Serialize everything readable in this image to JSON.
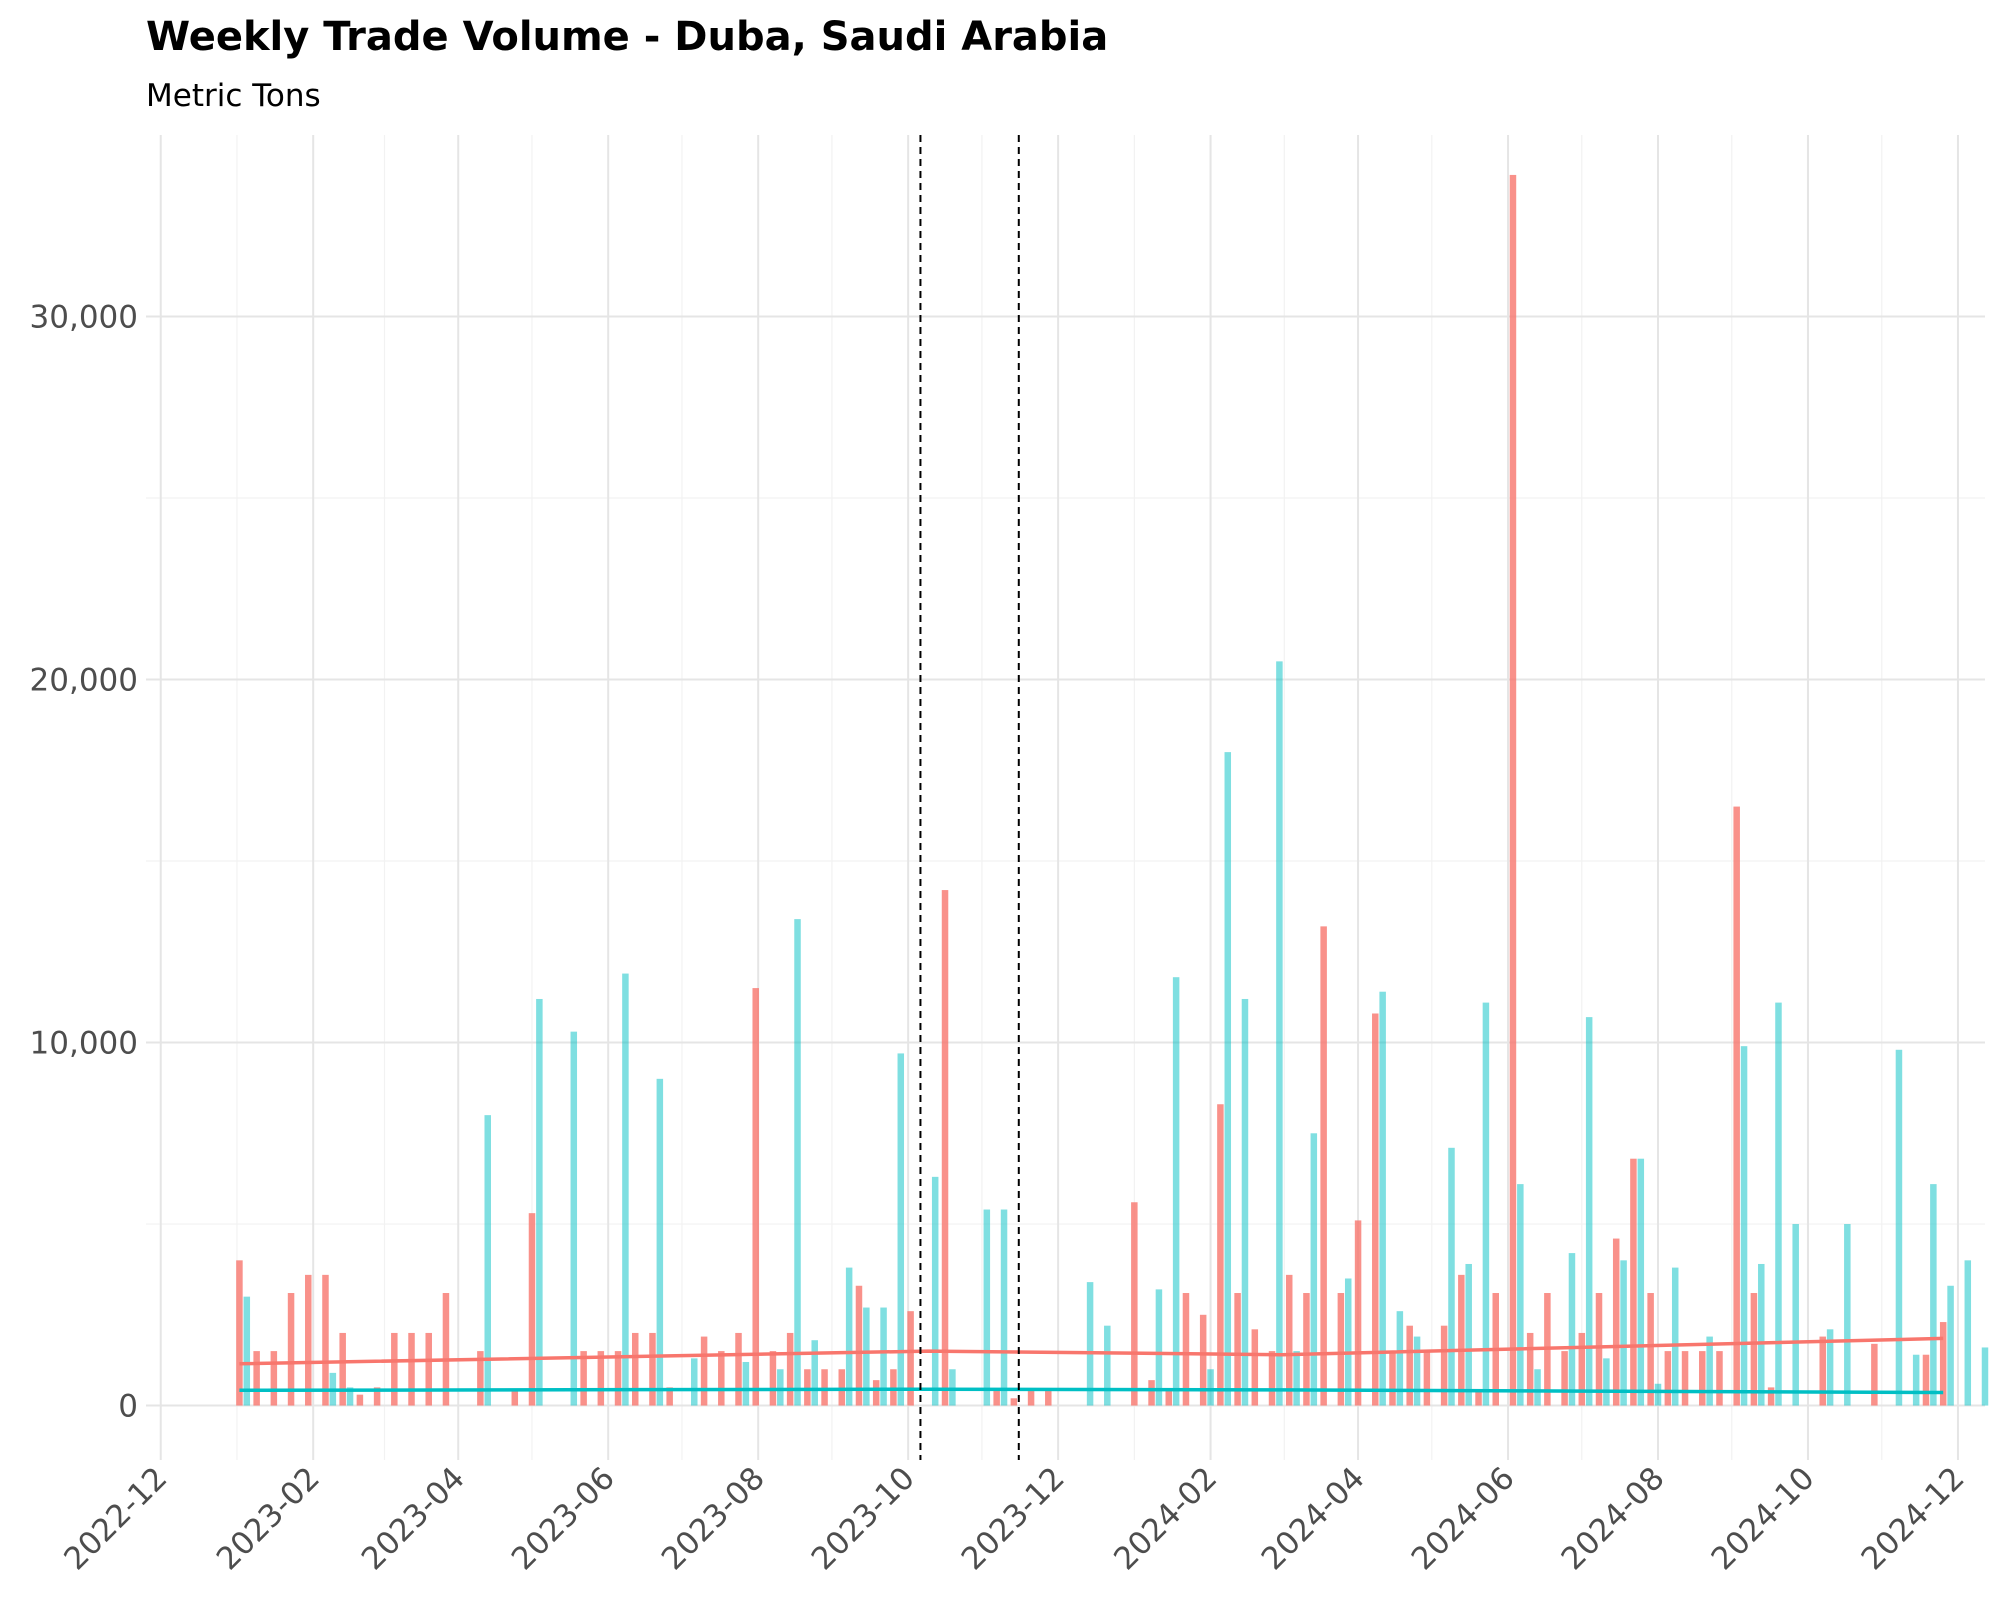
{
  "chart_data": {
    "type": "bar",
    "title": "Weekly Trade Volume - Duba, Saudi Arabia",
    "subtitle": "Metric Tons",
    "xlabel": "",
    "ylabel": "",
    "xlim": [
      "2022-11-25",
      "2024-12-12"
    ],
    "ylim": [
      -1500,
      35000
    ],
    "grid": true,
    "legend": "none",
    "x_ticks": [
      "2022-12-01",
      "2023-02-01",
      "2023-04-01",
      "2023-06-01",
      "2023-08-01",
      "2023-10-01",
      "2023-12-01",
      "2024-02-01",
      "2024-04-01",
      "2024-06-01",
      "2024-08-01",
      "2024-10-01",
      "2024-12-01"
    ],
    "x_tick_labels": [
      "2022-12",
      "2023-02",
      "2023-04",
      "2023-06",
      "2023-08",
      "2023-10",
      "2023-12",
      "2024-02",
      "2024-04",
      "2024-06",
      "2024-08",
      "2024-10",
      "2024-12"
    ],
    "y_ticks": [
      0,
      10000,
      20000,
      30000
    ],
    "y_tick_labels": [
      "0",
      "10,000",
      "20,000",
      "30,000"
    ],
    "reference_lines": [
      "2023-10-06",
      "2023-11-15"
    ],
    "series": [
      {
        "color": "#f8766d",
        "points": [
          [
            "2023-01-02",
            4000
          ],
          [
            "2023-01-09",
            1500
          ],
          [
            "2023-01-16",
            1500
          ],
          [
            "2023-01-23",
            3100
          ],
          [
            "2023-01-30",
            3600
          ],
          [
            "2023-02-06",
            3600
          ],
          [
            "2023-02-13",
            2000
          ],
          [
            "2023-02-20",
            300
          ],
          [
            "2023-02-27",
            500
          ],
          [
            "2023-03-06",
            2000
          ],
          [
            "2023-03-13",
            2000
          ],
          [
            "2023-03-20",
            2000
          ],
          [
            "2023-03-27",
            3100
          ],
          [
            "2023-04-10",
            1500
          ],
          [
            "2023-04-24",
            400
          ],
          [
            "2023-05-01",
            5300
          ],
          [
            "2023-05-22",
            1500
          ],
          [
            "2023-05-29",
            1500
          ],
          [
            "2023-06-05",
            1500
          ],
          [
            "2023-06-12",
            2000
          ],
          [
            "2023-06-19",
            2000
          ],
          [
            "2023-06-26",
            500
          ],
          [
            "2023-07-10",
            1900
          ],
          [
            "2023-07-17",
            1500
          ],
          [
            "2023-07-24",
            2000
          ],
          [
            "2023-07-31",
            11500
          ],
          [
            "2023-08-07",
            1500
          ],
          [
            "2023-08-14",
            2000
          ],
          [
            "2023-08-21",
            1000
          ],
          [
            "2023-08-28",
            1000
          ],
          [
            "2023-09-04",
            1000
          ],
          [
            "2023-09-11",
            3300
          ],
          [
            "2023-09-18",
            700
          ],
          [
            "2023-09-25",
            1000
          ],
          [
            "2023-10-02",
            2600
          ],
          [
            "2023-10-16",
            14200
          ],
          [
            "2023-11-06",
            400
          ],
          [
            "2023-11-13",
            200
          ],
          [
            "2023-11-20",
            400
          ],
          [
            "2023-11-27",
            400
          ],
          [
            "2024-01-01",
            5600
          ],
          [
            "2024-01-08",
            700
          ],
          [
            "2024-01-15",
            400
          ],
          [
            "2024-01-22",
            3100
          ],
          [
            "2024-01-29",
            2500
          ],
          [
            "2024-02-05",
            8300
          ],
          [
            "2024-02-12",
            3100
          ],
          [
            "2024-02-19",
            2100
          ],
          [
            "2024-02-26",
            1500
          ],
          [
            "2024-03-04",
            3600
          ],
          [
            "2024-03-11",
            3100
          ],
          [
            "2024-03-18",
            13200
          ],
          [
            "2024-03-25",
            3100
          ],
          [
            "2024-04-01",
            5100
          ],
          [
            "2024-04-08",
            10800
          ],
          [
            "2024-04-15",
            1500
          ],
          [
            "2024-04-22",
            2200
          ],
          [
            "2024-04-29",
            1500
          ],
          [
            "2024-05-06",
            2200
          ],
          [
            "2024-05-13",
            3600
          ],
          [
            "2024-05-20",
            400
          ],
          [
            "2024-05-27",
            3100
          ],
          [
            "2024-06-03",
            33900
          ],
          [
            "2024-06-10",
            2000
          ],
          [
            "2024-06-17",
            3100
          ],
          [
            "2024-06-24",
            1500
          ],
          [
            "2024-07-01",
            2000
          ],
          [
            "2024-07-08",
            3100
          ],
          [
            "2024-07-15",
            4600
          ],
          [
            "2024-07-22",
            6800
          ],
          [
            "2024-07-29",
            3100
          ],
          [
            "2024-08-05",
            1500
          ],
          [
            "2024-08-12",
            1500
          ],
          [
            "2024-08-19",
            1500
          ],
          [
            "2024-08-26",
            1500
          ],
          [
            "2024-09-02",
            16500
          ],
          [
            "2024-09-09",
            3100
          ],
          [
            "2024-09-16",
            500
          ],
          [
            "2024-10-07",
            1900
          ],
          [
            "2024-10-28",
            1700
          ],
          [
            "2024-11-18",
            1400
          ],
          [
            "2024-11-25",
            2300
          ]
        ],
        "trend": [
          [
            "2023-01-02",
            1150
          ],
          [
            "2023-10-09",
            1500
          ],
          [
            "2024-03-01",
            1400
          ],
          [
            "2024-11-25",
            1850
          ]
        ]
      },
      {
        "color": "#00bfc4",
        "points": [
          [
            "2023-01-05",
            3000
          ],
          [
            "2023-02-09",
            900
          ],
          [
            "2023-02-16",
            500
          ],
          [
            "2023-04-13",
            8000
          ],
          [
            "2023-05-04",
            11200
          ],
          [
            "2023-05-18",
            10300
          ],
          [
            "2023-06-08",
            11900
          ],
          [
            "2023-06-22",
            9000
          ],
          [
            "2023-07-06",
            1300
          ],
          [
            "2023-07-27",
            1200
          ],
          [
            "2023-08-10",
            1000
          ],
          [
            "2023-08-17",
            13400
          ],
          [
            "2023-08-24",
            1800
          ],
          [
            "2023-09-07",
            3800
          ],
          [
            "2023-09-14",
            2700
          ],
          [
            "2023-09-21",
            2700
          ],
          [
            "2023-09-28",
            9700
          ],
          [
            "2023-10-12",
            6300
          ],
          [
            "2023-10-19",
            1000
          ],
          [
            "2023-11-02",
            5400
          ],
          [
            "2023-11-09",
            5400
          ],
          [
            "2023-12-14",
            3400
          ],
          [
            "2023-12-21",
            2200
          ],
          [
            "2024-01-11",
            3200
          ],
          [
            "2024-01-18",
            11800
          ],
          [
            "2024-02-01",
            1000
          ],
          [
            "2024-02-08",
            18000
          ],
          [
            "2024-02-15",
            11200
          ],
          [
            "2024-02-29",
            20500
          ],
          [
            "2024-03-07",
            1500
          ],
          [
            "2024-03-14",
            7500
          ],
          [
            "2024-03-28",
            3500
          ],
          [
            "2024-04-11",
            11400
          ],
          [
            "2024-04-18",
            2600
          ],
          [
            "2024-04-25",
            1900
          ],
          [
            "2024-05-09",
            7100
          ],
          [
            "2024-05-16",
            3900
          ],
          [
            "2024-05-23",
            11100
          ],
          [
            "2024-06-06",
            6100
          ],
          [
            "2024-06-13",
            1000
          ],
          [
            "2024-06-27",
            4200
          ],
          [
            "2024-07-04",
            10700
          ],
          [
            "2024-07-11",
            1300
          ],
          [
            "2024-07-18",
            4000
          ],
          [
            "2024-07-25",
            6800
          ],
          [
            "2024-08-01",
            600
          ],
          [
            "2024-08-08",
            3800
          ],
          [
            "2024-08-22",
            1900
          ],
          [
            "2024-09-05",
            9900
          ],
          [
            "2024-09-12",
            3900
          ],
          [
            "2024-09-19",
            11100
          ],
          [
            "2024-09-26",
            5000
          ],
          [
            "2024-10-10",
            2100
          ],
          [
            "2024-10-17",
            5000
          ],
          [
            "2024-11-07",
            9800
          ],
          [
            "2024-11-14",
            1400
          ],
          [
            "2024-11-21",
            6100
          ],
          [
            "2024-11-28",
            3300
          ],
          [
            "2024-12-05",
            4000
          ],
          [
            "2024-12-12",
            1600
          ]
        ],
        "trend": [
          [
            "2023-01-02",
            420
          ],
          [
            "2023-10-09",
            450
          ],
          [
            "2024-03-01",
            430
          ],
          [
            "2024-11-25",
            360
          ]
        ]
      }
    ]
  }
}
